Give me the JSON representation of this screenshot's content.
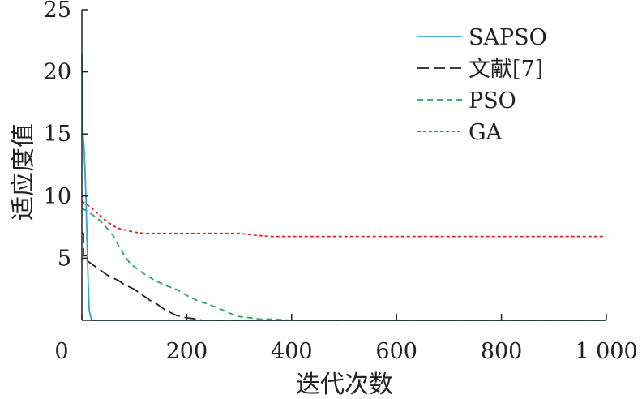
{
  "chart_data": {
    "type": "line",
    "xlabel": "迭代次数",
    "ylabel": "适应度值",
    "xlim": [
      0,
      1000
    ],
    "ylim": [
      0,
      25
    ],
    "xticks": [
      {
        "value": 0,
        "label": "0"
      },
      {
        "value": 200,
        "label": "200"
      },
      {
        "value": 400,
        "label": "400"
      },
      {
        "value": 600,
        "label": "600"
      },
      {
        "value": 800,
        "label": "800"
      },
      {
        "value": 1000,
        "label": "1 000"
      }
    ],
    "yticks": [
      {
        "value": 5,
        "label": "5"
      },
      {
        "value": 10,
        "label": "10"
      },
      {
        "value": 15,
        "label": "15"
      },
      {
        "value": 20,
        "label": "20"
      },
      {
        "value": 25,
        "label": "25"
      }
    ],
    "legend_position": "top-right",
    "grid": false,
    "series": [
      {
        "name": "SAPSO",
        "color": "#2aa6d6",
        "dash": "solid",
        "x": [
          0,
          2,
          4,
          6,
          8,
          10,
          12,
          14,
          16,
          18,
          20,
          22,
          1000
        ],
        "y": [
          21.4,
          15,
          14,
          12,
          9.5,
          6,
          3,
          0.8,
          0.4,
          0.1,
          0,
          0,
          0
        ]
      },
      {
        "name": "文献[7]",
        "color": "#222222",
        "dash": "long",
        "x": [
          0,
          3,
          3,
          10,
          10,
          20,
          30,
          40,
          50,
          60,
          70,
          80,
          90,
          100,
          110,
          120,
          130,
          140,
          150,
          160,
          170,
          180,
          190,
          200,
          210,
          220,
          225,
          230,
          1000
        ],
        "y": [
          7.0,
          7.0,
          5.2,
          5.2,
          4.8,
          4.5,
          4.2,
          3.9,
          3.6,
          3.4,
          3.2,
          2.9,
          2.7,
          2.5,
          2.2,
          1.9,
          1.6,
          1.4,
          1.1,
          0.8,
          0.6,
          0.4,
          0.3,
          0.2,
          0.15,
          0.1,
          0.05,
          0,
          0
        ]
      },
      {
        "name": "PSO",
        "color": "#2aa65a",
        "dash": "medium",
        "x": [
          0,
          10,
          20,
          30,
          40,
          50,
          60,
          70,
          80,
          90,
          100,
          110,
          120,
          140,
          160,
          180,
          200,
          220,
          240,
          260,
          280,
          300,
          320,
          340,
          360,
          380,
          400,
          1000
        ],
        "y": [
          9.0,
          8.8,
          8.5,
          8.2,
          7.8,
          7.3,
          6.8,
          6.0,
          5.3,
          4.7,
          4.3,
          4.0,
          3.7,
          3.2,
          2.8,
          2.5,
          2.0,
          1.6,
          1.3,
          1.0,
          0.6,
          0.3,
          0.2,
          0.1,
          0.1,
          0.05,
          0,
          0
        ]
      },
      {
        "name": "GA",
        "color": "#d9262b",
        "dash": "short",
        "x": [
          0,
          10,
          20,
          30,
          40,
          50,
          60,
          70,
          80,
          90,
          100,
          110,
          120,
          130,
          150,
          200,
          250,
          300,
          330,
          360,
          400,
          500,
          600,
          700,
          800,
          900,
          1000
        ],
        "y": [
          9.6,
          9.3,
          9.0,
          8.6,
          8.2,
          7.9,
          7.6,
          7.4,
          7.3,
          7.2,
          7.1,
          7.05,
          7.0,
          7.0,
          7.0,
          7.0,
          7.0,
          7.0,
          6.85,
          6.75,
          6.75,
          6.75,
          6.75,
          6.75,
          6.75,
          6.75,
          6.75
        ]
      }
    ]
  }
}
